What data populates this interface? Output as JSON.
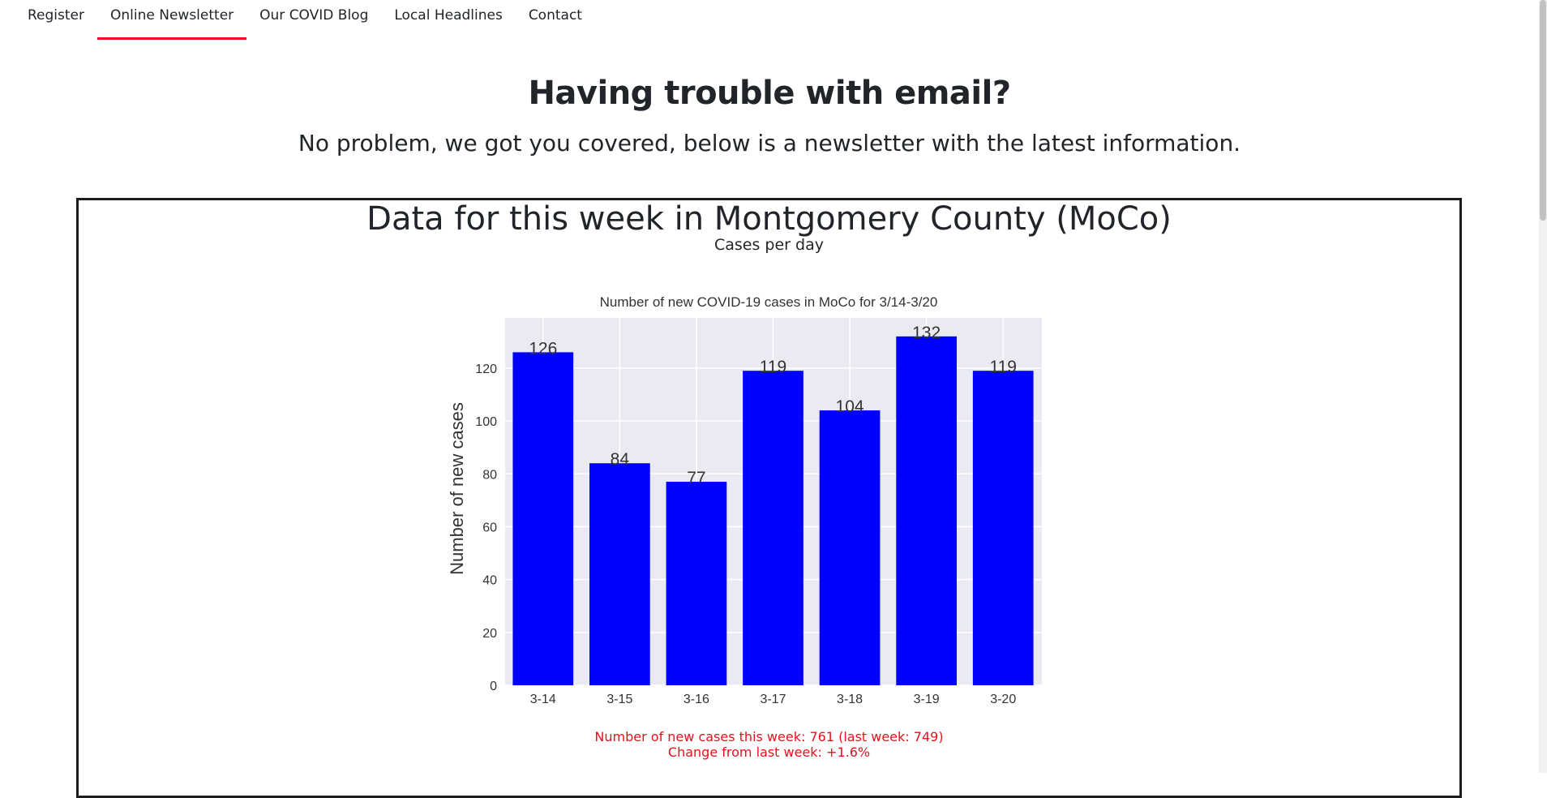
{
  "nav": {
    "items": [
      {
        "label": "Register"
      },
      {
        "label": "Online Newsletter",
        "active": true
      },
      {
        "label": "Our COVID Blog"
      },
      {
        "label": "Local Headlines"
      },
      {
        "label": "Contact"
      }
    ],
    "accent_color": "#e8101a"
  },
  "page": {
    "heading": "Having trouble with email?",
    "subheading": "No problem, we got you covered, below is a newsletter with the latest information."
  },
  "panel": {
    "title": "Data for this week in Montgomery County (MoCo)",
    "subtitle": "Cases per day"
  },
  "chart_data": {
    "type": "bar",
    "title": "Number of new COVID-19 cases in MoCo for 3/14-3/20",
    "xlabel": "",
    "ylabel": "Number of new cases",
    "categories": [
      "3-14",
      "3-15",
      "3-16",
      "3-17",
      "3-18",
      "3-19",
      "3-20"
    ],
    "values": [
      126,
      84,
      77,
      119,
      104,
      132,
      119
    ],
    "yticks": [
      0,
      20,
      40,
      60,
      80,
      100,
      120
    ],
    "ylim": [
      0,
      139
    ],
    "bar_color": "#0000ff",
    "background_color": "#eaeaf2",
    "grid": true,
    "data_labels": true
  },
  "stats": {
    "line1": "Number of new cases this week: 761 (last week: 749)",
    "line2": "Change from last week: +1.6%"
  }
}
